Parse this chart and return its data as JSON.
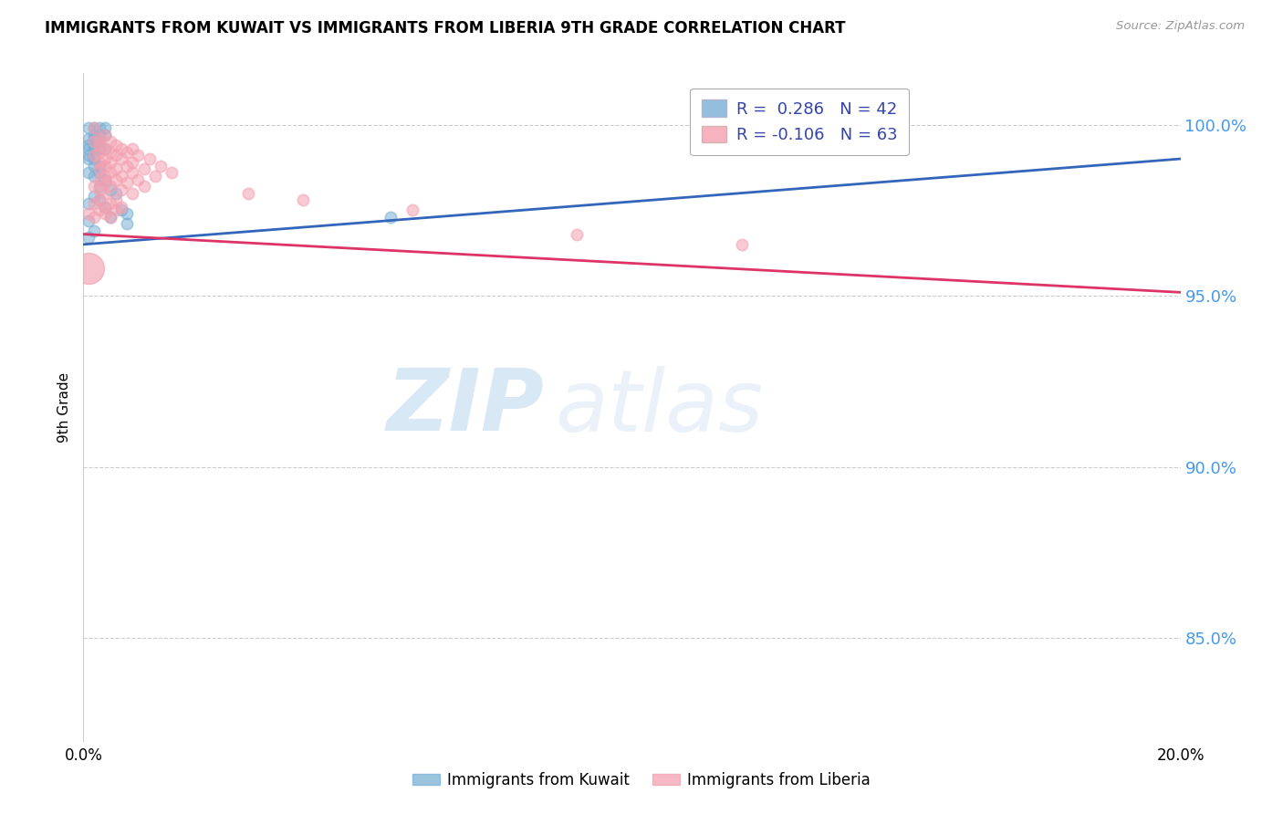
{
  "title": "IMMIGRANTS FROM KUWAIT VS IMMIGRANTS FROM LIBERIA 9TH GRADE CORRELATION CHART",
  "source_text": "Source: ZipAtlas.com",
  "ylabel": "9th Grade",
  "y_ticks": [
    1.0,
    0.95,
    0.9,
    0.85
  ],
  "y_tick_labels": [
    "100.0%",
    "95.0%",
    "90.0%",
    "85.0%"
  ],
  "x_range": [
    0.0,
    0.2
  ],
  "y_range": [
    0.82,
    1.015
  ],
  "kuwait_color": "#7ab0d4",
  "liberia_color": "#f4a0b0",
  "kuwait_line_color": "#3366bb",
  "liberia_line_color": "#dd3366",
  "watermark_zip": "ZIP",
  "watermark_atlas": "atlas",
  "kuwait_trendline": [
    [
      0.0,
      0.965
    ],
    [
      0.2,
      0.99
    ]
  ],
  "liberia_trendline": [
    [
      0.0,
      0.968
    ],
    [
      0.2,
      0.951
    ]
  ],
  "kuwait_points": [
    [
      0.001,
      0.999
    ],
    [
      0.002,
      0.999
    ],
    [
      0.003,
      0.999
    ],
    [
      0.004,
      0.999
    ],
    [
      0.002,
      0.997
    ],
    [
      0.003,
      0.997
    ],
    [
      0.004,
      0.997
    ],
    [
      0.001,
      0.996
    ],
    [
      0.002,
      0.996
    ],
    [
      0.003,
      0.996
    ],
    [
      0.001,
      0.994
    ],
    [
      0.002,
      0.994
    ],
    [
      0.003,
      0.994
    ],
    [
      0.001,
      0.993
    ],
    [
      0.002,
      0.993
    ],
    [
      0.003,
      0.993
    ],
    [
      0.004,
      0.993
    ],
    [
      0.001,
      0.991
    ],
    [
      0.002,
      0.991
    ],
    [
      0.001,
      0.99
    ],
    [
      0.002,
      0.99
    ],
    [
      0.002,
      0.988
    ],
    [
      0.003,
      0.988
    ],
    [
      0.001,
      0.986
    ],
    [
      0.003,
      0.986
    ],
    [
      0.002,
      0.985
    ],
    [
      0.004,
      0.984
    ],
    [
      0.003,
      0.982
    ],
    [
      0.005,
      0.981
    ],
    [
      0.006,
      0.98
    ],
    [
      0.002,
      0.979
    ],
    [
      0.003,
      0.978
    ],
    [
      0.001,
      0.977
    ],
    [
      0.004,
      0.976
    ],
    [
      0.007,
      0.975
    ],
    [
      0.008,
      0.974
    ],
    [
      0.005,
      0.973
    ],
    [
      0.001,
      0.972
    ],
    [
      0.056,
      0.973
    ],
    [
      0.008,
      0.971
    ],
    [
      0.002,
      0.969
    ],
    [
      0.001,
      0.967
    ]
  ],
  "liberia_points": [
    [
      0.002,
      0.999
    ],
    [
      0.004,
      0.997
    ],
    [
      0.003,
      0.996
    ],
    [
      0.002,
      0.995
    ],
    [
      0.005,
      0.995
    ],
    [
      0.003,
      0.994
    ],
    [
      0.006,
      0.994
    ],
    [
      0.004,
      0.993
    ],
    [
      0.007,
      0.993
    ],
    [
      0.009,
      0.993
    ],
    [
      0.003,
      0.992
    ],
    [
      0.005,
      0.992
    ],
    [
      0.008,
      0.992
    ],
    [
      0.002,
      0.991
    ],
    [
      0.006,
      0.991
    ],
    [
      0.01,
      0.991
    ],
    [
      0.004,
      0.99
    ],
    [
      0.007,
      0.99
    ],
    [
      0.012,
      0.99
    ],
    [
      0.003,
      0.989
    ],
    [
      0.005,
      0.989
    ],
    [
      0.009,
      0.989
    ],
    [
      0.004,
      0.988
    ],
    [
      0.008,
      0.988
    ],
    [
      0.014,
      0.988
    ],
    [
      0.003,
      0.987
    ],
    [
      0.006,
      0.987
    ],
    [
      0.011,
      0.987
    ],
    [
      0.005,
      0.986
    ],
    [
      0.009,
      0.986
    ],
    [
      0.016,
      0.986
    ],
    [
      0.004,
      0.985
    ],
    [
      0.007,
      0.985
    ],
    [
      0.013,
      0.985
    ],
    [
      0.003,
      0.984
    ],
    [
      0.006,
      0.984
    ],
    [
      0.01,
      0.984
    ],
    [
      0.004,
      0.983
    ],
    [
      0.008,
      0.983
    ],
    [
      0.002,
      0.982
    ],
    [
      0.005,
      0.982
    ],
    [
      0.011,
      0.982
    ],
    [
      0.003,
      0.981
    ],
    [
      0.007,
      0.981
    ],
    [
      0.004,
      0.98
    ],
    [
      0.009,
      0.98
    ],
    [
      0.003,
      0.978
    ],
    [
      0.006,
      0.978
    ],
    [
      0.002,
      0.977
    ],
    [
      0.005,
      0.977
    ],
    [
      0.004,
      0.976
    ],
    [
      0.007,
      0.976
    ],
    [
      0.003,
      0.975
    ],
    [
      0.006,
      0.975
    ],
    [
      0.001,
      0.974
    ],
    [
      0.004,
      0.974
    ],
    [
      0.002,
      0.973
    ],
    [
      0.005,
      0.973
    ],
    [
      0.03,
      0.98
    ],
    [
      0.04,
      0.978
    ],
    [
      0.06,
      0.975
    ],
    [
      0.09,
      0.968
    ],
    [
      0.12,
      0.965
    ]
  ],
  "large_liberia_point": [
    0.001,
    0.958
  ],
  "large_liberia_size": 600
}
